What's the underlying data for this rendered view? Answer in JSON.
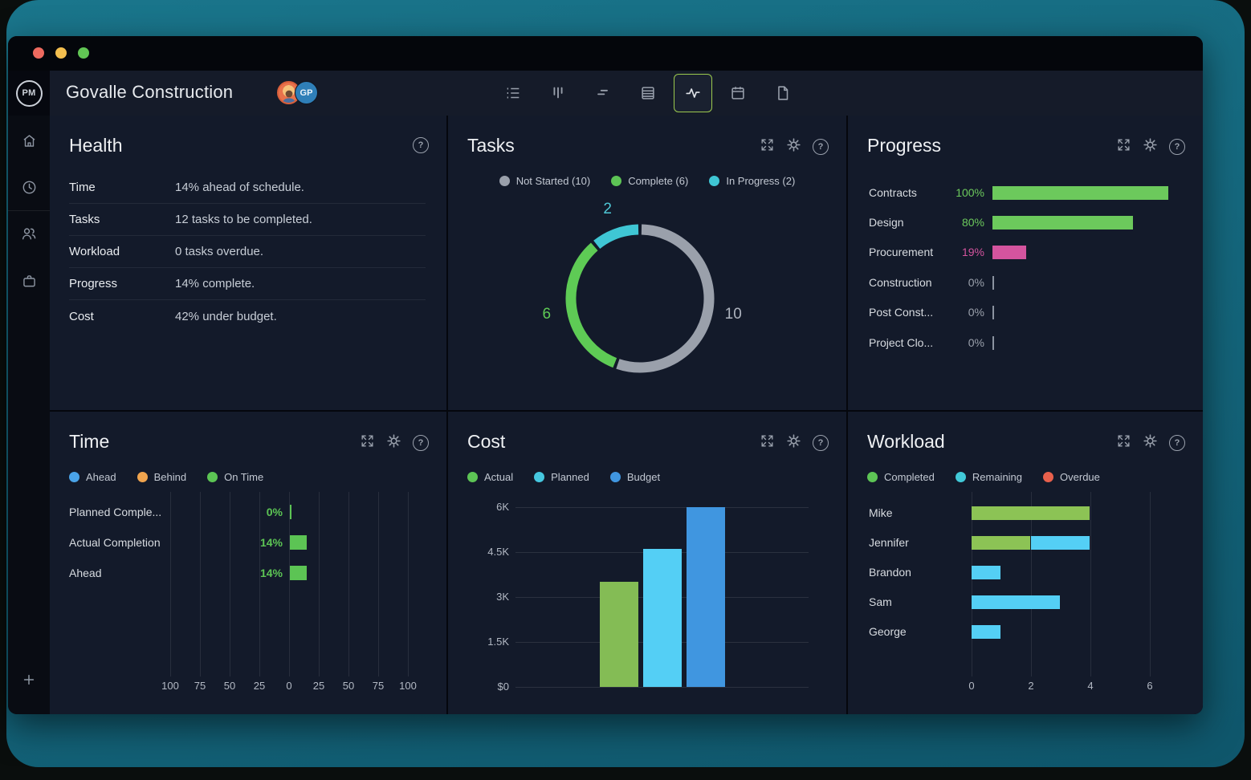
{
  "titlebar": {
    "buttons": [
      "close",
      "minimize",
      "zoom"
    ]
  },
  "header": {
    "logo_text": "PM",
    "title": "Govalle Construction",
    "avatars": [
      {
        "type": "photo",
        "label": ""
      },
      {
        "type": "initials",
        "label": "GP",
        "color": "#2f7fb8"
      }
    ],
    "toolbar": [
      {
        "name": "list-view",
        "active": false
      },
      {
        "name": "board-view",
        "active": false
      },
      {
        "name": "gantt-view",
        "active": false
      },
      {
        "name": "sheet-view",
        "active": false
      },
      {
        "name": "dashboard-view",
        "active": true
      },
      {
        "name": "calendar-view",
        "active": false
      },
      {
        "name": "reports-view",
        "active": false
      }
    ],
    "active_border_color": "#9bc94e"
  },
  "sidebar": {
    "top_icons": [
      "home",
      "clock",
      "team",
      "portfolio"
    ],
    "bottom_icons": [
      "add",
      "help",
      "account"
    ]
  },
  "panels": {
    "health": {
      "title": "Health",
      "rows": [
        {
          "label": "Time",
          "value": "14% ahead of schedule."
        },
        {
          "label": "Tasks",
          "value": "12 tasks to be completed."
        },
        {
          "label": "Workload",
          "value": "0 tasks overdue."
        },
        {
          "label": "Progress",
          "value": "14% complete."
        },
        {
          "label": "Cost",
          "value": "42% under budget."
        }
      ]
    },
    "tasks": {
      "title": "Tasks"
    },
    "progress": {
      "title": "Progress"
    },
    "time": {
      "title": "Time"
    },
    "cost": {
      "title": "Cost"
    },
    "workload": {
      "title": "Workload"
    }
  },
  "chart_data": [
    {
      "id": "tasks",
      "type": "pie",
      "variant": "donut",
      "title": "Tasks",
      "total": 18,
      "legend": [
        {
          "label": "Not Started (10)",
          "color": "#9aa0ab"
        },
        {
          "label": "Complete (6)",
          "color": "#5dc455"
        },
        {
          "label": "In Progress (2)",
          "color": "#3fc6d4"
        }
      ],
      "segments": [
        {
          "label": "Not Started",
          "value": 10,
          "color": "#9aa0ab",
          "label_color": "#aeb4bf"
        },
        {
          "label": "Complete",
          "value": 6,
          "color": "#5ecb55",
          "label_color": "#5ecb55"
        },
        {
          "label": "In Progress",
          "value": 2,
          "color": "#3fc6d4",
          "label_color": "#4fc8d6"
        }
      ]
    },
    {
      "id": "progress",
      "type": "bar",
      "variant": "horizontal",
      "title": "Progress",
      "max": 100,
      "rows": [
        {
          "label": "Contracts",
          "pct_label": "100%",
          "value": 100,
          "color": "#6cc95c"
        },
        {
          "label": "Design",
          "pct_label": "80%",
          "value": 80,
          "color": "#6cc95c"
        },
        {
          "label": "Procurement",
          "pct_label": "19%",
          "value": 19,
          "color": "#d4549e"
        },
        {
          "label": "Construction",
          "pct_label": "0%",
          "value": 0,
          "color": "#9aa0ab"
        },
        {
          "label": "Post Const...",
          "pct_label": "0%",
          "value": 0,
          "color": "#9aa0ab"
        },
        {
          "label": "Project Clo...",
          "pct_label": "0%",
          "value": 0,
          "color": "#9aa0ab"
        }
      ]
    },
    {
      "id": "time",
      "type": "bar",
      "variant": "diverging-horizontal",
      "title": "Time",
      "legend": [
        {
          "label": "Ahead",
          "color": "#4aa3e8"
        },
        {
          "label": "Behind",
          "color": "#f0a44e"
        },
        {
          "label": "On Time",
          "color": "#5cc454"
        }
      ],
      "axis": {
        "ticks": [
          "100",
          "75",
          "50",
          "25",
          "0",
          "25",
          "50",
          "75",
          "100"
        ],
        "range": [
          -100,
          100
        ]
      },
      "rows": [
        {
          "label": "Planned Comple...",
          "value": 0,
          "value_label": "0%",
          "color": "#5cc454"
        },
        {
          "label": "Actual Completion",
          "value": 14,
          "value_label": "14%",
          "color": "#5cc454"
        },
        {
          "label": "Ahead",
          "value": 14,
          "value_label": "14%",
          "color": "#5cc454"
        }
      ]
    },
    {
      "id": "cost",
      "type": "bar",
      "variant": "vertical",
      "title": "Cost",
      "legend": [
        {
          "label": "Actual",
          "color": "#5dc455"
        },
        {
          "label": "Planned",
          "color": "#46c8e0"
        },
        {
          "label": "Budget",
          "color": "#4096e0"
        }
      ],
      "y_axis": {
        "labels": [
          "6K",
          "4.5K",
          "3K",
          "1.5K",
          "$0"
        ],
        "max": 6000,
        "min": 0
      },
      "bars": [
        {
          "name": "Actual",
          "value": 3500,
          "color": "#84bc55"
        },
        {
          "name": "Planned",
          "value": 4600,
          "color": "#54cff5"
        },
        {
          "name": "Budget",
          "value": 6000,
          "color": "#4096e0"
        }
      ]
    },
    {
      "id": "workload",
      "type": "bar",
      "variant": "stacked-horizontal",
      "title": "Workload",
      "legend": [
        {
          "label": "Completed",
          "color": "#5dc455"
        },
        {
          "label": "Remaining",
          "color": "#41c9d8"
        },
        {
          "label": "Overdue",
          "color": "#e8604c"
        }
      ],
      "x_axis": {
        "ticks": [
          "0",
          "2",
          "4",
          "6"
        ],
        "max": 6
      },
      "rows": [
        {
          "label": "Mike",
          "segments": [
            {
              "type": "completed",
              "value": 4,
              "color": "#8cc355"
            }
          ]
        },
        {
          "label": "Jennifer",
          "segments": [
            {
              "type": "completed",
              "value": 2,
              "color": "#8cc355"
            },
            {
              "type": "remaining",
              "value": 2,
              "color": "#54cff5"
            }
          ]
        },
        {
          "label": "Brandon",
          "segments": [
            {
              "type": "remaining",
              "value": 1,
              "color": "#54cff5"
            }
          ]
        },
        {
          "label": "Sam",
          "segments": [
            {
              "type": "remaining",
              "value": 3,
              "color": "#54cff5"
            }
          ]
        },
        {
          "label": "George",
          "segments": [
            {
              "type": "remaining",
              "value": 1,
              "color": "#54cff5"
            }
          ]
        }
      ]
    }
  ]
}
